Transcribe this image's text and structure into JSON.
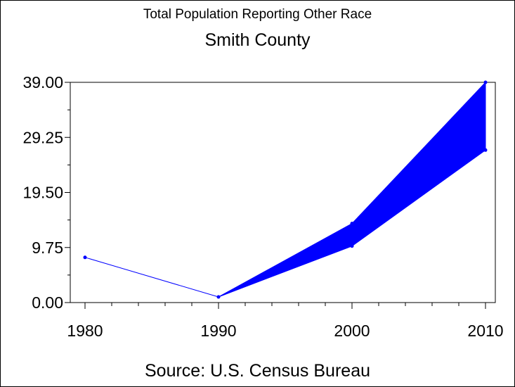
{
  "chart_data": {
    "type": "area",
    "title": "Total Population Reporting Other Race",
    "subtitle": "Smith County",
    "source": "Source: U.S. Census Bureau",
    "xlabel": "",
    "ylabel": "",
    "x": [
      1980,
      1990,
      2000,
      2010
    ],
    "x_tick_labels": [
      "1980",
      "1990",
      "2000",
      "2010"
    ],
    "ylim": [
      0,
      39
    ],
    "y_ticks": [
      0,
      9.75,
      19.5,
      29.25,
      39
    ],
    "y_tick_labels": [
      "0.00",
      "9.75",
      "19.50",
      "29.25",
      "39.00"
    ],
    "series": [
      {
        "role": "lower",
        "values": [
          8,
          1,
          10,
          27
        ]
      },
      {
        "role": "upper",
        "values": [
          8,
          1,
          14,
          39
        ]
      }
    ],
    "band_start_index": 1,
    "grid": false,
    "legend": "none",
    "color": "#0000ff"
  }
}
